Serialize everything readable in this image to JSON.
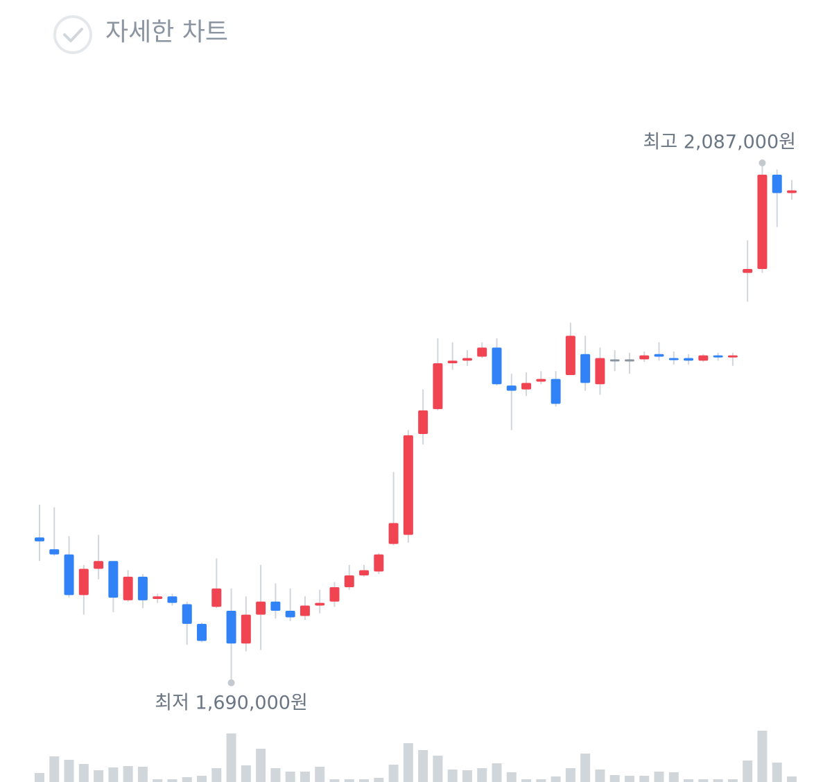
{
  "chart_data": {
    "type": "candlestick",
    "title": "자세한 차트",
    "max_label": "최고 2,087,000원",
    "min_label": "최저 1,690,000원",
    "up_color": "#f04452",
    "down_color": "#3182f6",
    "flat_color": "#8b95a1",
    "wick_color": "#d1d6db",
    "volume_color": "#d1d6db",
    "ylim": [
      1682000,
      2132000
    ],
    "volume_ylim": [
      0,
      80
    ],
    "open": [
      1801000,
      1792000,
      1788000,
      1757000,
      1777000,
      1783000,
      1753000,
      1771000,
      1754000,
      1756000,
      1750000,
      1735000,
      1748000,
      1745000,
      1720000,
      1742000,
      1752000,
      1745000,
      1741000,
      1749000,
      1752000,
      1763000,
      1772000,
      1775000,
      1796000,
      1803000,
      1880000,
      1899000,
      1934000,
      1936000,
      1939000,
      1946000,
      1917000,
      1914000,
      1920000,
      1922000,
      1925000,
      1941000,
      1918000,
      1937000,
      1937000,
      1937000,
      1941000,
      1938000,
      1938000,
      1936000,
      1940000,
      1939000,
      2003000,
      2006000,
      2078000,
      2064000
    ],
    "high": [
      1826000,
      1824000,
      1802000,
      1780000,
      1803000,
      1783000,
      1776000,
      1773000,
      1758000,
      1758000,
      1752000,
      1736000,
      1785000,
      1762000,
      1756000,
      1780000,
      1766000,
      1762000,
      1756000,
      1761000,
      1767000,
      1780000,
      1780000,
      1789000,
      1851000,
      1883000,
      1914000,
      1953000,
      1950000,
      1944000,
      1950000,
      1953000,
      1926000,
      1927000,
      1928000,
      1928000,
      1965000,
      1955000,
      1946000,
      1944000,
      1942000,
      1943000,
      1950000,
      1943000,
      1941000,
      1941000,
      1942000,
      1942000,
      2028000,
      2087000,
      2082000,
      2074000
    ],
    "low": [
      1783000,
      1787000,
      1755000,
      1742000,
      1769000,
      1744000,
      1752000,
      1747000,
      1751000,
      1749000,
      1719000,
      1721000,
      1747000,
      1690000,
      1714000,
      1715000,
      1739000,
      1737000,
      1738000,
      1743000,
      1748000,
      1761000,
      1771000,
      1773000,
      1795000,
      1797000,
      1872000,
      1898000,
      1929000,
      1932000,
      1938000,
      1917000,
      1883000,
      1909000,
      1918000,
      1901000,
      1925000,
      1913000,
      1910000,
      1928000,
      1926000,
      1935000,
      1936000,
      1933000,
      1933000,
      1935000,
      1936000,
      1932000,
      1981000,
      2003000,
      2038000,
      2059000
    ],
    "close": [
      1798000,
      1788000,
      1757000,
      1777000,
      1783000,
      1755000,
      1771000,
      1753000,
      1756000,
      1751000,
      1735000,
      1722000,
      1762000,
      1720000,
      1742000,
      1752000,
      1745000,
      1740000,
      1749000,
      1751000,
      1763000,
      1772000,
      1776000,
      1788000,
      1812000,
      1879000,
      1898000,
      1934000,
      1936000,
      1938000,
      1946000,
      1918000,
      1913000,
      1919000,
      1922000,
      1903000,
      1955000,
      1919000,
      1938000,
      1937000,
      1937000,
      1940000,
      1939000,
      1937000,
      1936000,
      1940000,
      1939000,
      1940000,
      2006000,
      2078000,
      2064000,
      2066000
    ],
    "volume": [
      13,
      37,
      32,
      26,
      17,
      21,
      23,
      22,
      4,
      4,
      7,
      9,
      20,
      70,
      24,
      48,
      20,
      15,
      15,
      22,
      4,
      4,
      4,
      6,
      25,
      56,
      46,
      38,
      18,
      17,
      20,
      27,
      14,
      4,
      4,
      8,
      20,
      41,
      18,
      10,
      9,
      9,
      15,
      14,
      4,
      4,
      4,
      4,
      31,
      74,
      28,
      8
    ]
  }
}
